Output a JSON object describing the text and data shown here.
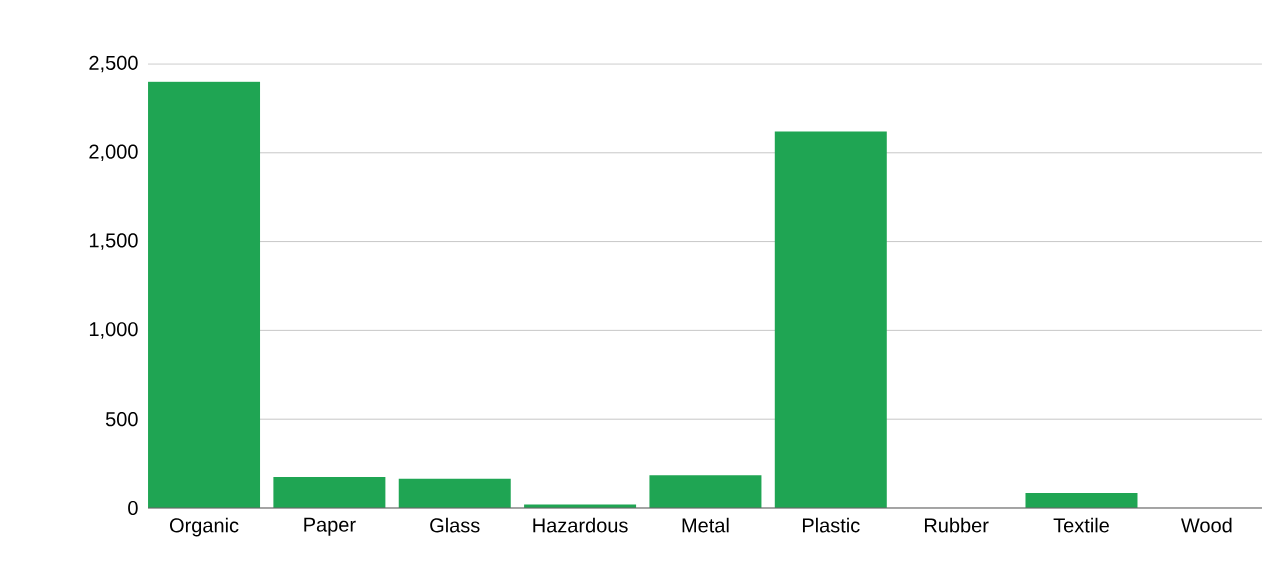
{
  "chart_data": {
    "type": "bar",
    "categories": [
      "Organic",
      "Paper",
      "Glass",
      "Hazardous",
      "Metal",
      "Plastic",
      "Rubber",
      "Textile",
      "Wood"
    ],
    "values": [
      2400,
      175,
      165,
      20,
      185,
      2120,
      0,
      85,
      0
    ],
    "color": "#1fa553",
    "ylim": [
      0,
      2500
    ],
    "yticks": [
      {
        "value": 0,
        "label": "0"
      },
      {
        "value": 500,
        "label": "500"
      },
      {
        "value": 1000,
        "label": "1,000"
      },
      {
        "value": 1500,
        "label": "1,500"
      },
      {
        "value": 2000,
        "label": "2,000"
      },
      {
        "value": 2500,
        "label": "2,500"
      }
    ],
    "grid": "y"
  }
}
